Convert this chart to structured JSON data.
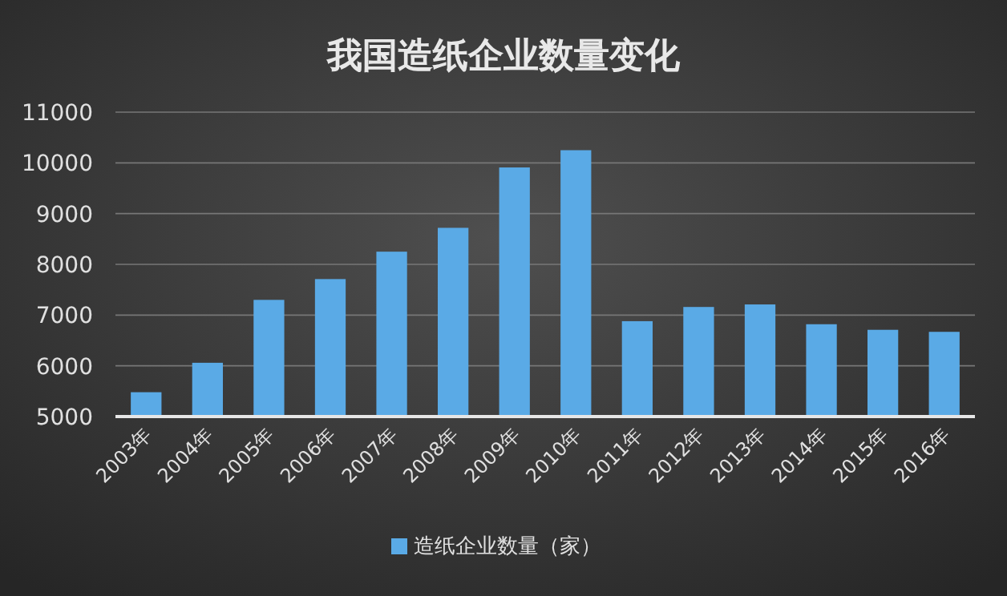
{
  "chart_data": {
    "type": "bar",
    "title": "我国造纸企业数量变化",
    "categories": [
      "2003年",
      "2004年",
      "2005年",
      "2006年",
      "2007年",
      "2008年",
      "2009年",
      "2010年",
      "2011年",
      "2012年",
      "2013年",
      "2014年",
      "2015年",
      "2016年"
    ],
    "series": [
      {
        "name": "造纸企业数量（家）",
        "color": "#5aaae6",
        "values": [
          5480,
          6060,
          7300,
          7710,
          8250,
          8720,
          9910,
          10250,
          6880,
          7160,
          7210,
          6820,
          6710,
          6670
        ]
      }
    ],
    "ylim": [
      5000,
      11000
    ],
    "yticks": [
      5000,
      6000,
      7000,
      8000,
      9000,
      10000,
      11000
    ],
    "grid": "y",
    "legend": "bottom"
  }
}
